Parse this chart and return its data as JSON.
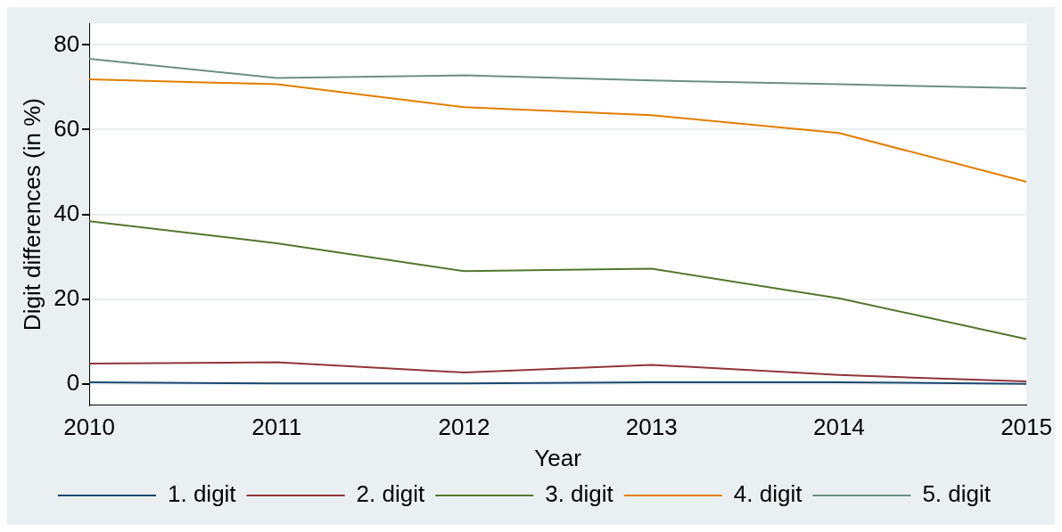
{
  "chart_data": {
    "type": "line",
    "xlabel": "Year",
    "ylabel": "Digit differences (in %)",
    "x": [
      2010,
      2011,
      2012,
      2013,
      2014,
      2015
    ],
    "xlim": [
      2010,
      2015
    ],
    "xticks": [
      2010,
      2011,
      2012,
      2013,
      2014,
      2015
    ],
    "ylim": [
      -5,
      85
    ],
    "yticks": [
      0,
      20,
      40,
      60,
      80
    ],
    "grid": "y",
    "legend": "bottom",
    "marker": "none",
    "line_style": "solid",
    "series": [
      {
        "name": "1. digit",
        "color": "#1a476f",
        "values": [
          0.4,
          0.1,
          0.1,
          0.4,
          0.4,
          0.0
        ]
      },
      {
        "name": "2. digit",
        "color": "#90353b",
        "values": [
          4.8,
          5.1,
          2.7,
          4.5,
          2.1,
          0.6
        ]
      },
      {
        "name": "3. digit",
        "color": "#55752f",
        "values": [
          38.4,
          33.2,
          26.6,
          27.2,
          20.2,
          10.6
        ]
      },
      {
        "name": "4. digit",
        "color": "#e37e00",
        "values": [
          71.9,
          70.7,
          65.3,
          63.4,
          59.2,
          47.7
        ]
      },
      {
        "name": "5. digit",
        "color": "#6e8e84",
        "values": [
          76.7,
          72.2,
          72.8,
          71.6,
          70.7,
          69.8
        ]
      }
    ]
  }
}
